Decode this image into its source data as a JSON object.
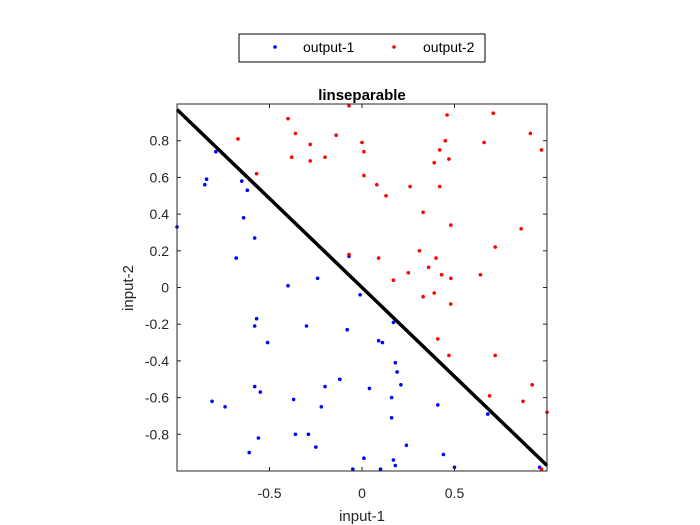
{
  "chart_data": {
    "type": "scatter",
    "title": "linseparable",
    "xlabel": "input-1",
    "ylabel": "input-2",
    "xlim": [
      -1,
      1
    ],
    "ylim": [
      -1,
      1
    ],
    "xticks": [
      -0.5,
      0,
      0.5
    ],
    "xtick_labels": [
      "-0.5",
      "0",
      "0.5"
    ],
    "yticks": [
      -0.8,
      -0.6,
      -0.4,
      -0.2,
      0,
      0.2,
      0.4,
      0.6,
      0.8
    ],
    "ytick_labels": [
      "-0.8",
      "-0.6",
      "-0.4",
      "-0.2",
      "0",
      "0.2",
      "0.4",
      "0.6",
      "0.8"
    ],
    "grid": false,
    "legend": "top-outside, horizontal",
    "series": [
      {
        "name": "output-1",
        "color": "#0000ff",
        "points": [
          [
            -1.0,
            0.33
          ],
          [
            -0.84,
            0.59
          ],
          [
            -0.85,
            0.56
          ],
          [
            -0.79,
            0.74
          ],
          [
            -0.65,
            0.58
          ],
          [
            -0.62,
            0.53
          ],
          [
            -0.64,
            0.38
          ],
          [
            -0.68,
            0.16
          ],
          [
            -0.58,
            0.27
          ],
          [
            -0.4,
            0.01
          ],
          [
            -0.24,
            0.05
          ],
          [
            -0.07,
            0.17
          ],
          [
            -0.57,
            -0.17
          ],
          [
            -0.58,
            -0.21
          ],
          [
            -0.51,
            -0.3
          ],
          [
            -0.3,
            -0.21
          ],
          [
            -0.08,
            -0.23
          ],
          [
            -0.01,
            -0.04
          ],
          [
            0.09,
            -0.29
          ],
          [
            0.11,
            -0.3
          ],
          [
            0.17,
            -0.19
          ],
          [
            0.18,
            -0.41
          ],
          [
            0.19,
            -0.46
          ],
          [
            0.21,
            -0.53
          ],
          [
            -0.58,
            -0.54
          ],
          [
            -0.55,
            -0.57
          ],
          [
            -0.37,
            -0.61
          ],
          [
            -0.2,
            -0.54
          ],
          [
            -0.12,
            -0.5
          ],
          [
            -0.22,
            -0.65
          ],
          [
            0.04,
            -0.55
          ],
          [
            0.16,
            -0.6
          ],
          [
            0.16,
            -0.71
          ],
          [
            -0.81,
            -0.62
          ],
          [
            -0.74,
            -0.65
          ],
          [
            -0.56,
            -0.82
          ],
          [
            -0.36,
            -0.8
          ],
          [
            -0.29,
            -0.8
          ],
          [
            -0.25,
            -0.87
          ],
          [
            -0.61,
            -0.9
          ],
          [
            0.17,
            -0.94
          ],
          [
            0.18,
            -0.97
          ],
          [
            0.24,
            -0.86
          ],
          [
            0.41,
            -0.64
          ],
          [
            0.44,
            -0.91
          ],
          [
            0.5,
            -0.98
          ],
          [
            -0.05,
            -0.99
          ],
          [
            0.01,
            -0.93
          ],
          [
            0.1,
            -0.99
          ],
          [
            0.68,
            -0.69
          ],
          [
            0.96,
            -0.98
          ]
        ]
      },
      {
        "name": "output-2",
        "color": "#ff0000",
        "points": [
          [
            -0.4,
            0.92
          ],
          [
            -0.07,
            0.99
          ],
          [
            0.46,
            0.94
          ],
          [
            0.71,
            0.95
          ],
          [
            -0.67,
            0.81
          ],
          [
            -0.36,
            0.84
          ],
          [
            -0.28,
            0.78
          ],
          [
            -0.14,
            0.83
          ],
          [
            0.0,
            0.79
          ],
          [
            0.01,
            0.74
          ],
          [
            0.45,
            0.8
          ],
          [
            0.66,
            0.79
          ],
          [
            0.91,
            0.84
          ],
          [
            0.97,
            0.75
          ],
          [
            -0.57,
            0.62
          ],
          [
            -0.38,
            0.71
          ],
          [
            -0.28,
            0.69
          ],
          [
            -0.2,
            0.71
          ],
          [
            0.01,
            0.61
          ],
          [
            0.08,
            0.56
          ],
          [
            0.13,
            0.5
          ],
          [
            0.26,
            0.55
          ],
          [
            0.39,
            0.68
          ],
          [
            0.42,
            0.75
          ],
          [
            0.47,
            0.7
          ],
          [
            0.42,
            0.55
          ],
          [
            0.33,
            0.41
          ],
          [
            0.48,
            0.34
          ],
          [
            0.86,
            0.32
          ],
          [
            -0.07,
            0.18
          ],
          [
            0.09,
            0.16
          ],
          [
            0.31,
            0.2
          ],
          [
            0.4,
            0.16
          ],
          [
            0.72,
            0.22
          ],
          [
            0.17,
            0.04
          ],
          [
            0.25,
            0.08
          ],
          [
            0.36,
            0.11
          ],
          [
            0.43,
            0.07
          ],
          [
            0.48,
            0.05
          ],
          [
            0.64,
            0.07
          ],
          [
            0.33,
            -0.05
          ],
          [
            0.39,
            -0.03
          ],
          [
            0.48,
            -0.09
          ],
          [
            0.41,
            -0.28
          ],
          [
            0.47,
            -0.37
          ],
          [
            0.72,
            -0.37
          ],
          [
            0.92,
            -0.53
          ],
          [
            0.69,
            -0.59
          ],
          [
            0.87,
            -0.62
          ],
          [
            1.0,
            -0.68
          ],
          [
            0.97,
            -0.99
          ]
        ]
      }
    ],
    "decision_line": {
      "color": "#000000",
      "points": [
        [
          -1.0,
          0.97
        ],
        [
          1.0,
          -0.97
        ]
      ]
    }
  }
}
